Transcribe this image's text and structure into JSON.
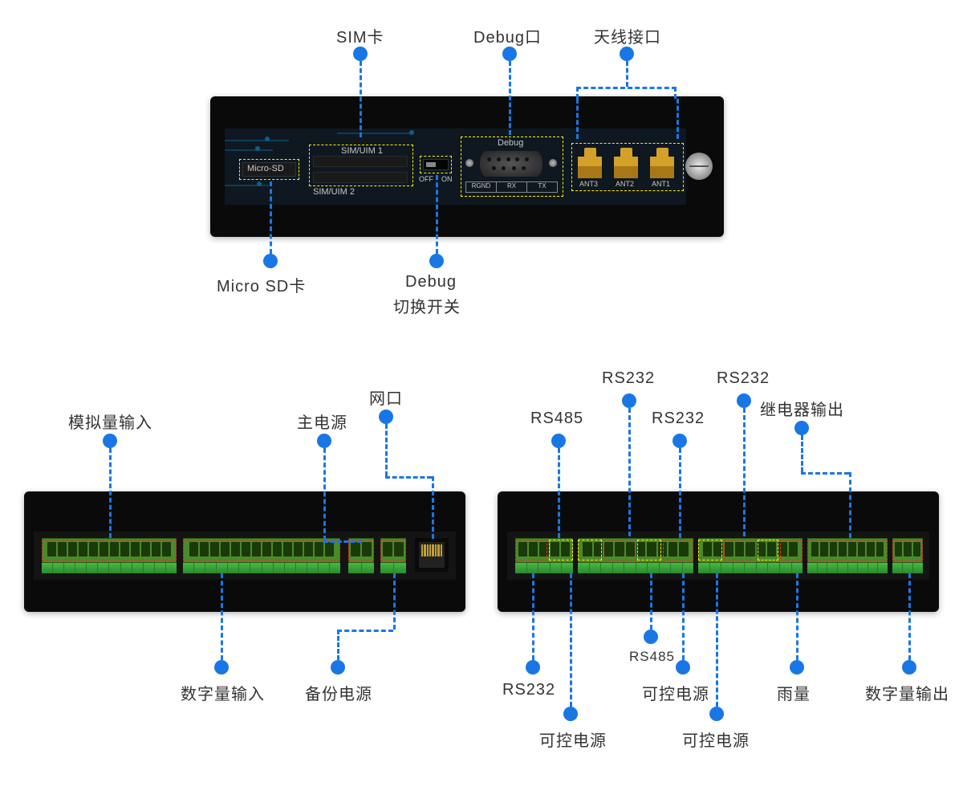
{
  "colors": {
    "callout_blue": "#1977e5",
    "dash_yellow": "#fff200",
    "dash_red": "#e03030",
    "device_black": "#0a0a0a",
    "panel_dark": "#0f1820",
    "terminal_green": "#4a8a2a",
    "terminal_light": "#38a838",
    "gold": "#d4a028",
    "text": "#333333",
    "panel_text": "#c8c8c8"
  },
  "fonts": {
    "label_size_pt": 16,
    "small_label_pt": 13,
    "panel_text_pt": 8
  },
  "top": {
    "labels": {
      "sim": "SIM卡",
      "debug_port": "Debug口",
      "antenna": "天线接口",
      "micro_sd": "Micro SD卡",
      "debug_switch_line1": "Debug",
      "debug_switch_line2": "切换开关"
    },
    "panel_text": {
      "micro_sd": "Micro-SD",
      "sim1": "SIM/UIM 1",
      "sim2": "SIM/UIM 2",
      "off": "OFF",
      "on": "ON",
      "debug": "Debug",
      "rgnd": "RGND",
      "rx": "RX",
      "tx": "TX",
      "ant3": "ANT3",
      "ant2": "ANT2",
      "ant1": "ANT1"
    }
  },
  "bl": {
    "labels": {
      "analog_in": "模拟量输入",
      "main_power": "主电源",
      "net_port": "网口",
      "digital_in": "数字量输入",
      "backup_power": "备份电源"
    },
    "terminals": {
      "block1_pins": 12,
      "block2_pins": 14,
      "block3_pins": 2,
      "block4_pins": 2
    }
  },
  "br": {
    "labels": {
      "rs485_top": "RS485",
      "rs232_t1": "RS232",
      "rs232_t2": "RS232",
      "rs232_t3": "RS232",
      "relay_out": "继电器输出",
      "rs232_bot": "RS232",
      "ctl_power_b1": "可控电源",
      "rs485_bot": "RS485",
      "ctl_power_b2": "可控电源",
      "ctl_power_b3": "可控电源",
      "rain": "雨量",
      "digital_out": "数字量输出"
    },
    "terminals": {
      "block1_pins": 5,
      "block2_pins": 10,
      "block3_pins": 9,
      "block4_pins": 8,
      "block5_pins": 3
    }
  }
}
